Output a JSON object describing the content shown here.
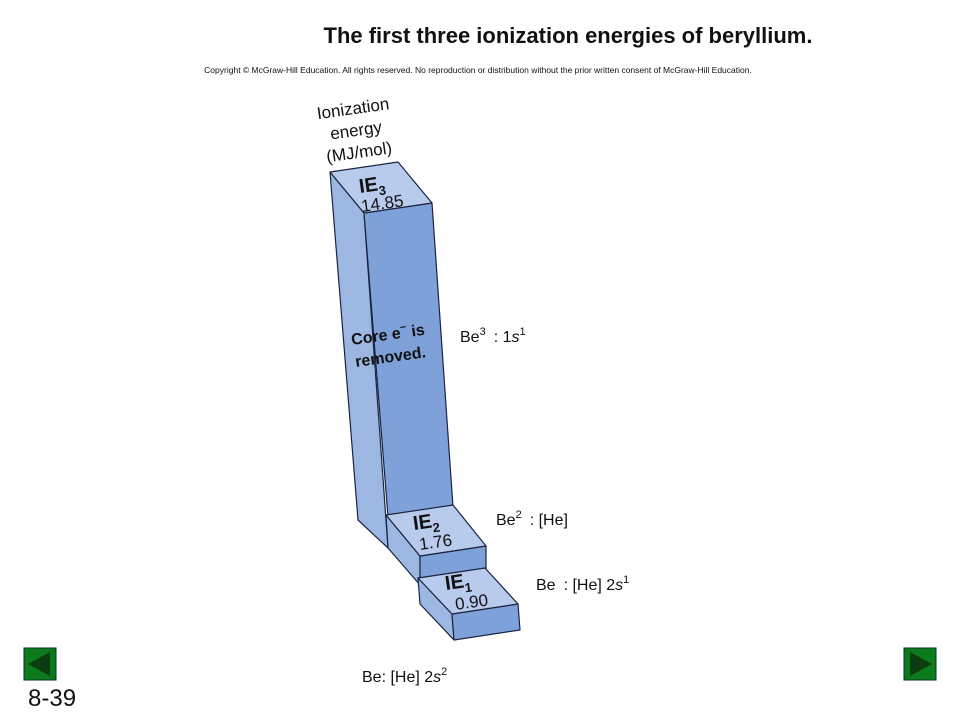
{
  "header": {
    "title": "The first three ionization energies of beryllium.",
    "copyright": "Copyright © McGraw-Hill Education.  All rights reserved. No reproduction or distribution without the prior written consent of McGraw-Hill Education."
  },
  "axis_label": [
    "Ionization",
    "energy",
    "(MJ/mol)"
  ],
  "bars": [
    {
      "label": "IE",
      "subscript": "1",
      "value": "0.90",
      "ion": {
        "symbol": "Be",
        "configuration": ": [He] 2",
        "orbital": "s",
        "exponent": "1"
      }
    },
    {
      "label": "IE",
      "subscript": "2",
      "value": "1.76",
      "ion": {
        "symbol": "Be",
        "charge": "2",
        "configuration": ": [He]"
      }
    },
    {
      "label": "IE",
      "subscript": "3",
      "value": "14.85",
      "ion": {
        "symbol": "Be",
        "charge": "3",
        "configuration": ": 1",
        "orbital": "s",
        "exponent": "1"
      }
    }
  ],
  "note": {
    "line1": "Core e",
    "superscript": "−",
    "line1_end": " is",
    "line2": "removed."
  },
  "ground_state": {
    "text": "Be: [He] 2",
    "orbital": "s",
    "exponent": "2"
  },
  "footer": {
    "slide_number": "8-39"
  }
}
